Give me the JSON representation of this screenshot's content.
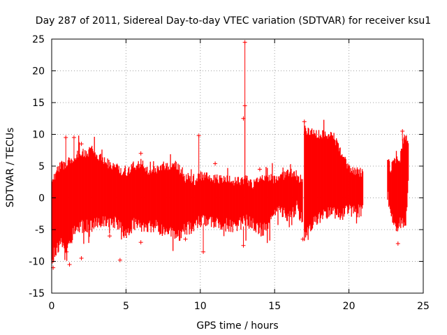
{
  "chart_data": {
    "type": "scatter",
    "title": "Day 287 of 2011, Sidereal Day-to-day VTEC variation (SDTVAR) for receiver ksu1",
    "xlabel": "GPS time / hours",
    "ylabel": "SDTVAR / TECUs",
    "xlim": [
      0,
      25
    ],
    "ylim": [
      -15,
      25
    ],
    "xticks": [
      0,
      5,
      10,
      15,
      20,
      25
    ],
    "yticks": [
      -15,
      -10,
      -5,
      0,
      5,
      10,
      15,
      20,
      25
    ],
    "xtick_labels": [
      "0",
      "5",
      "10",
      "15",
      "20",
      "25"
    ],
    "ytick_labels": [
      "-15",
      "-10",
      "-5",
      "0",
      "5",
      "10",
      "15",
      "20",
      "25"
    ],
    "grid": true,
    "series_color": "#ff0000",
    "marker": "plus",
    "envelope": {
      "description": "dense band of points; upper and lower bounds per hour (data units)",
      "segments": [
        {
          "x": [
            0.0,
            0.3,
            0.6,
            1.0,
            1.5,
            2.0,
            2.5,
            3.0,
            3.5,
            4.0,
            4.5,
            5.0,
            5.5,
            6.0,
            6.5,
            7.0,
            7.5,
            8.0,
            8.5,
            9.0,
            9.5,
            10.0,
            10.5,
            11.0,
            11.5,
            12.0,
            12.5,
            13.0,
            13.5,
            14.0,
            14.5,
            15.0,
            15.5,
            16.0,
            16.5,
            16.9
          ],
          "upper": [
            2.5,
            4.0,
            5.0,
            5.5,
            6.5,
            7.0,
            7.3,
            7.0,
            6.0,
            5.0,
            4.5,
            4.0,
            5.0,
            5.5,
            4.0,
            4.5,
            5.0,
            5.2,
            5.0,
            3.0,
            2.5,
            3.5,
            3.5,
            3.0,
            3.0,
            3.0,
            2.5,
            3.0,
            2.0,
            3.0,
            3.5,
            3.0,
            3.5,
            4.0,
            3.5,
            2.5
          ],
          "lower": [
            -10.0,
            -8.0,
            -7.0,
            -8.0,
            -5.5,
            -4.5,
            -4.5,
            -4.0,
            -4.0,
            -3.5,
            -4.0,
            -6.0,
            -4.0,
            -4.0,
            -4.5,
            -4.5,
            -5.0,
            -5.0,
            -6.0,
            -5.0,
            -4.5,
            -3.5,
            -4.0,
            -4.0,
            -4.0,
            -4.5,
            -4.5,
            -3.5,
            -4.0,
            -5.0,
            -5.0,
            -2.0,
            -2.0,
            -3.0,
            -1.5,
            -3.5
          ]
        },
        {
          "x": [
            17.0,
            17.3,
            17.6,
            18.0,
            18.3,
            18.6,
            19.0,
            19.3,
            19.6,
            20.0,
            20.3,
            20.6,
            20.95
          ],
          "upper": [
            11.0,
            10.5,
            10.0,
            10.0,
            10.0,
            9.8,
            9.5,
            8.0,
            6.5,
            4.5,
            4.0,
            4.0,
            4.0
          ],
          "lower": [
            -6.0,
            -5.5,
            -4.0,
            -3.0,
            -2.5,
            -2.5,
            -2.5,
            -2.5,
            -2.5,
            -2.0,
            -2.0,
            -2.0,
            -2.0
          ]
        },
        {
          "x": [
            22.6,
            22.8,
            23.0,
            23.2,
            23.4,
            23.6,
            23.8,
            24.0
          ],
          "upper": [
            6.0,
            4.5,
            5.5,
            6.5,
            5.0,
            9.0,
            10.0,
            9.0
          ],
          "lower": [
            0.5,
            -2.0,
            -4.5,
            -5.0,
            -4.0,
            -4.0,
            -4.5,
            2.0
          ]
        }
      ]
    },
    "outliers": [
      {
        "x": 13.0,
        "y": 24.5
      },
      {
        "x": 13.0,
        "y": 14.5
      },
      {
        "x": 12.9,
        "y": 12.5
      },
      {
        "x": 9.9,
        "y": 9.8
      },
      {
        "x": 0.95,
        "y": 9.5
      },
      {
        "x": 1.5,
        "y": 9.5
      },
      {
        "x": 2.0,
        "y": 8.5
      },
      {
        "x": 17.0,
        "y": 12.0
      },
      {
        "x": 23.6,
        "y": 10.5
      },
      {
        "x": 11.0,
        "y": 5.4
      },
      {
        "x": 6.0,
        "y": 7.0
      },
      {
        "x": 2.0,
        "y": -9.5
      },
      {
        "x": 4.6,
        "y": -9.8
      },
      {
        "x": 1.2,
        "y": -10.5
      },
      {
        "x": 0.1,
        "y": -11.0
      },
      {
        "x": 10.2,
        "y": -8.5
      },
      {
        "x": 23.3,
        "y": -7.2
      },
      {
        "x": 6.0,
        "y": -7.0
      },
      {
        "x": 9.0,
        "y": -6.5
      },
      {
        "x": 3.9,
        "y": -6.0
      },
      {
        "x": 16.9,
        "y": -6.5
      },
      {
        "x": 1.0,
        "y": -8.5
      },
      {
        "x": 14.0,
        "y": 4.5
      },
      {
        "x": 12.9,
        "y": -7.5
      }
    ]
  }
}
